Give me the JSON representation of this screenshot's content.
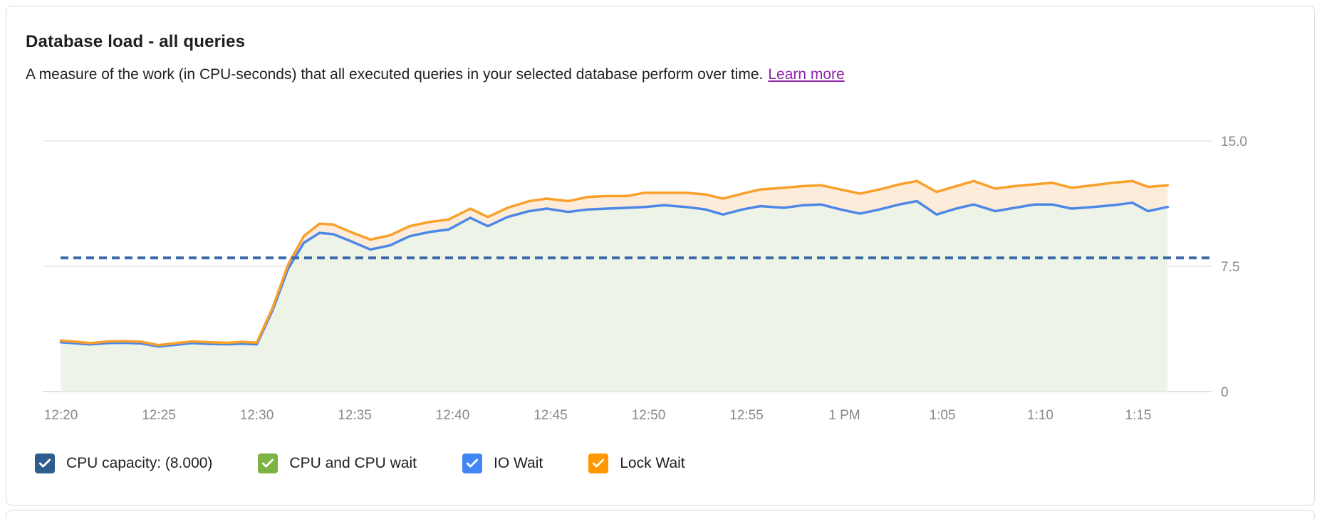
{
  "card": {
    "title": "Database load - all queries",
    "subtitle": "A measure of the work (in CPU-seconds) that all executed queries in your selected database perform over time.",
    "learn_more": "Learn more"
  },
  "colors": {
    "card_border": "#dadce0",
    "link_purple": "#8E24AA",
    "gridline": "#ececec",
    "axis_text": "#858789",
    "capacity_dash": "#3B6CA8",
    "io_wait_line": "#4D87E8",
    "lock_wait_line": "#F9A02B",
    "cpu_area_fill": "#EDF3E6",
    "lock_band_fill": "#FDECD9"
  },
  "legend": {
    "items": [
      {
        "label": "CPU capacity: (8.000)",
        "color": "#2D5C8F",
        "checked": true
      },
      {
        "label": "CPU and CPU wait",
        "color": "#7CB342",
        "checked": true
      },
      {
        "label": "IO Wait",
        "color": "#4285F4",
        "checked": true
      },
      {
        "label": "Lock Wait",
        "color": "#FF9800",
        "checked": true
      }
    ]
  },
  "chart_data": {
    "type": "area",
    "title": "Database load - all queries",
    "units": "CPU-seconds",
    "legend_position": "bottom",
    "grid": "horizontal-only",
    "y_axis": {
      "side": "right",
      "range": [
        0,
        15
      ],
      "ticks": [
        {
          "value": 0,
          "label": "0"
        },
        {
          "value": 7.5,
          "label": "7.5"
        },
        {
          "value": 15,
          "label": "15.0"
        }
      ]
    },
    "x_axis": {
      "tick_minutes": [
        20,
        25,
        30,
        35,
        40,
        45,
        50,
        55,
        60,
        65,
        70,
        75
      ],
      "tick_labels": [
        "12:20",
        "12:25",
        "12:30",
        "12:35",
        "12:40",
        "12:45",
        "12:50",
        "12:55",
        "1 PM",
        "1:05",
        "1:10",
        "1:15"
      ]
    },
    "capacity_line": {
      "label": "CPU capacity",
      "value": 8.0,
      "display_value": "(8.000)",
      "color": "#3B6CA8",
      "style": "dashed"
    },
    "x_minutes_after_noon": [
      20.0,
      20.6,
      21.5,
      22.4,
      23.2,
      24.1,
      25.0,
      25.9,
      26.7,
      27.6,
      28.5,
      29.2,
      30.0,
      30.8,
      31.6,
      32.4,
      33.2,
      33.9,
      34.7,
      35.8,
      36.8,
      37.8,
      38.8,
      39.8,
      40.9,
      41.8,
      42.8,
      43.9,
      44.8,
      45.9,
      46.9,
      47.9,
      48.9,
      49.8,
      50.8,
      51.9,
      52.9,
      53.8,
      54.8,
      55.7,
      56.9,
      57.9,
      58.8,
      59.8,
      60.8,
      61.8,
      62.8,
      63.7,
      64.7,
      65.7,
      66.6,
      67.7,
      68.7,
      69.7,
      70.6,
      71.6,
      72.7,
      73.7,
      74.7,
      75.5,
      76.5
    ],
    "series": [
      {
        "name": "CPU and CPU wait",
        "line_color": "#7CB342",
        "fill_color": "#EDF3E6",
        "values": [
          2.9,
          2.85,
          2.77,
          2.85,
          2.87,
          2.83,
          2.65,
          2.75,
          2.85,
          2.8,
          2.78,
          2.82,
          2.78,
          4.8,
          7.3,
          8.85,
          9.45,
          9.37,
          9.0,
          8.45,
          8.7,
          9.25,
          9.5,
          9.65,
          10.35,
          9.85,
          10.4,
          10.75,
          10.9,
          10.7,
          10.85,
          10.9,
          10.95,
          11.0,
          11.1,
          11.0,
          10.85,
          10.55,
          10.85,
          11.05,
          10.95,
          11.1,
          11.15,
          10.85,
          10.6,
          10.85,
          11.15,
          11.35,
          10.55,
          10.9,
          11.15,
          10.75,
          10.95,
          11.15,
          11.15,
          10.9,
          11.0,
          11.1,
          11.25,
          10.75,
          11.0
        ]
      },
      {
        "name": "IO Wait",
        "line_color": "#4D87E8",
        "fill_color": "none",
        "values": [
          2.95,
          2.9,
          2.82,
          2.9,
          2.92,
          2.88,
          2.7,
          2.8,
          2.9,
          2.85,
          2.83,
          2.87,
          2.83,
          4.85,
          7.35,
          8.9,
          9.5,
          9.42,
          9.05,
          8.5,
          8.75,
          9.3,
          9.55,
          9.7,
          10.4,
          9.9,
          10.45,
          10.8,
          10.95,
          10.75,
          10.9,
          10.95,
          11.0,
          11.05,
          11.15,
          11.05,
          10.9,
          10.6,
          10.9,
          11.1,
          11.0,
          11.15,
          11.2,
          10.9,
          10.65,
          10.9,
          11.2,
          11.4,
          10.6,
          10.95,
          11.2,
          10.8,
          11.0,
          11.2,
          11.2,
          10.95,
          11.05,
          11.15,
          11.3,
          10.8,
          11.05
        ]
      },
      {
        "name": "Lock Wait",
        "line_color": "#F9A02B",
        "fill_color": "#FDECD9",
        "values": [
          3.05,
          3.0,
          2.9,
          3.0,
          3.02,
          2.98,
          2.78,
          2.9,
          3.0,
          2.95,
          2.92,
          2.97,
          2.93,
          5.0,
          7.6,
          9.3,
          10.05,
          10.0,
          9.6,
          9.1,
          9.35,
          9.9,
          10.15,
          10.3,
          10.95,
          10.45,
          11.0,
          11.4,
          11.55,
          11.4,
          11.65,
          11.7,
          11.7,
          11.9,
          11.9,
          11.9,
          11.8,
          11.55,
          11.85,
          12.1,
          12.2,
          12.3,
          12.35,
          12.1,
          11.85,
          12.1,
          12.4,
          12.6,
          11.95,
          12.3,
          12.6,
          12.15,
          12.3,
          12.4,
          12.5,
          12.2,
          12.35,
          12.5,
          12.6,
          12.25,
          12.35
        ]
      }
    ]
  }
}
